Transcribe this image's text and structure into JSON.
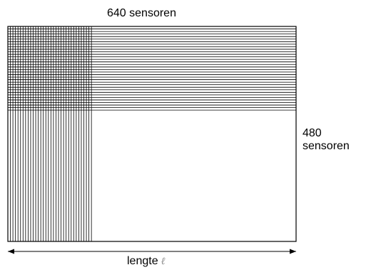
{
  "labels": {
    "top": "640 sensoren",
    "right_number": "480",
    "right_word": "sensoren",
    "bottom_text": "lengte",
    "bottom_symbol": "ℓ"
  },
  "colors": {
    "line": "#000000",
    "background": "#ffffff",
    "symbol": "#8a8a8a"
  }
}
